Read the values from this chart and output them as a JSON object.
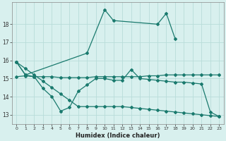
{
  "xlabel": "Humidex (Indice chaleur)",
  "xlim": [
    -0.5,
    23.5
  ],
  "ylim": [
    12.5,
    19.2
  ],
  "yticks": [
    13,
    14,
    15,
    16,
    17,
    18
  ],
  "xticks": [
    0,
    1,
    2,
    3,
    4,
    5,
    6,
    7,
    8,
    9,
    10,
    11,
    12,
    13,
    14,
    15,
    16,
    17,
    18,
    19,
    20,
    21,
    22,
    23
  ],
  "bg_color": "#d8f0ee",
  "line_color": "#1a7a6e",
  "grid_color": "#b8dcd9",
  "lines": [
    {
      "x": [
        0,
        1,
        2,
        3,
        4,
        5,
        6,
        7,
        8,
        9,
        10,
        11,
        12,
        13,
        14,
        15,
        16,
        17,
        18,
        19,
        20,
        21,
        22,
        23
      ],
      "y": [
        15.9,
        15.2,
        null,
        null,
        null,
        null,
        null,
        null,
        16.4,
        null,
        18.8,
        18.2,
        null,
        null,
        null,
        null,
        18.0,
        18.6,
        17.2,
        null,
        null,
        null,
        null,
        null
      ]
    },
    {
      "x": [
        0,
        1,
        2,
        3,
        4,
        5,
        6,
        7,
        8,
        9,
        10,
        11,
        12,
        13,
        14,
        15,
        16,
        17,
        18,
        19,
        20,
        21,
        22,
        23
      ],
      "y": [
        15.1,
        15.15,
        15.1,
        15.1,
        15.1,
        15.05,
        15.05,
        15.05,
        15.05,
        15.1,
        15.1,
        15.1,
        15.1,
        15.1,
        15.1,
        15.15,
        15.15,
        15.2,
        15.2,
        15.2,
        15.2,
        15.2,
        15.2,
        15.2
      ]
    },
    {
      "x": [
        0,
        1,
        2,
        3,
        4,
        5,
        6,
        7,
        8,
        9,
        10,
        11,
        12,
        13,
        14,
        15,
        16,
        17,
        18,
        19,
        20,
        21,
        22,
        23
      ],
      "y": [
        15.9,
        15.2,
        15.1,
        14.45,
        14.0,
        13.2,
        13.4,
        14.3,
        14.65,
        15.0,
        15.0,
        14.9,
        14.9,
        15.5,
        15.0,
        14.95,
        14.9,
        14.85,
        14.8,
        14.8,
        14.75,
        14.7,
        13.15,
        12.9
      ]
    },
    {
      "x": [
        0,
        1,
        2,
        3,
        4,
        5,
        6,
        7,
        8,
        9,
        10,
        11,
        12,
        13,
        14,
        15,
        16,
        17,
        18,
        19,
        20,
        21,
        22,
        23
      ],
      "y": [
        15.9,
        15.55,
        15.2,
        14.85,
        14.5,
        14.15,
        13.8,
        13.45,
        13.45,
        13.45,
        13.45,
        13.45,
        13.45,
        13.4,
        13.35,
        13.3,
        13.25,
        13.2,
        13.15,
        13.1,
        13.05,
        13.0,
        12.95,
        12.9
      ]
    }
  ]
}
